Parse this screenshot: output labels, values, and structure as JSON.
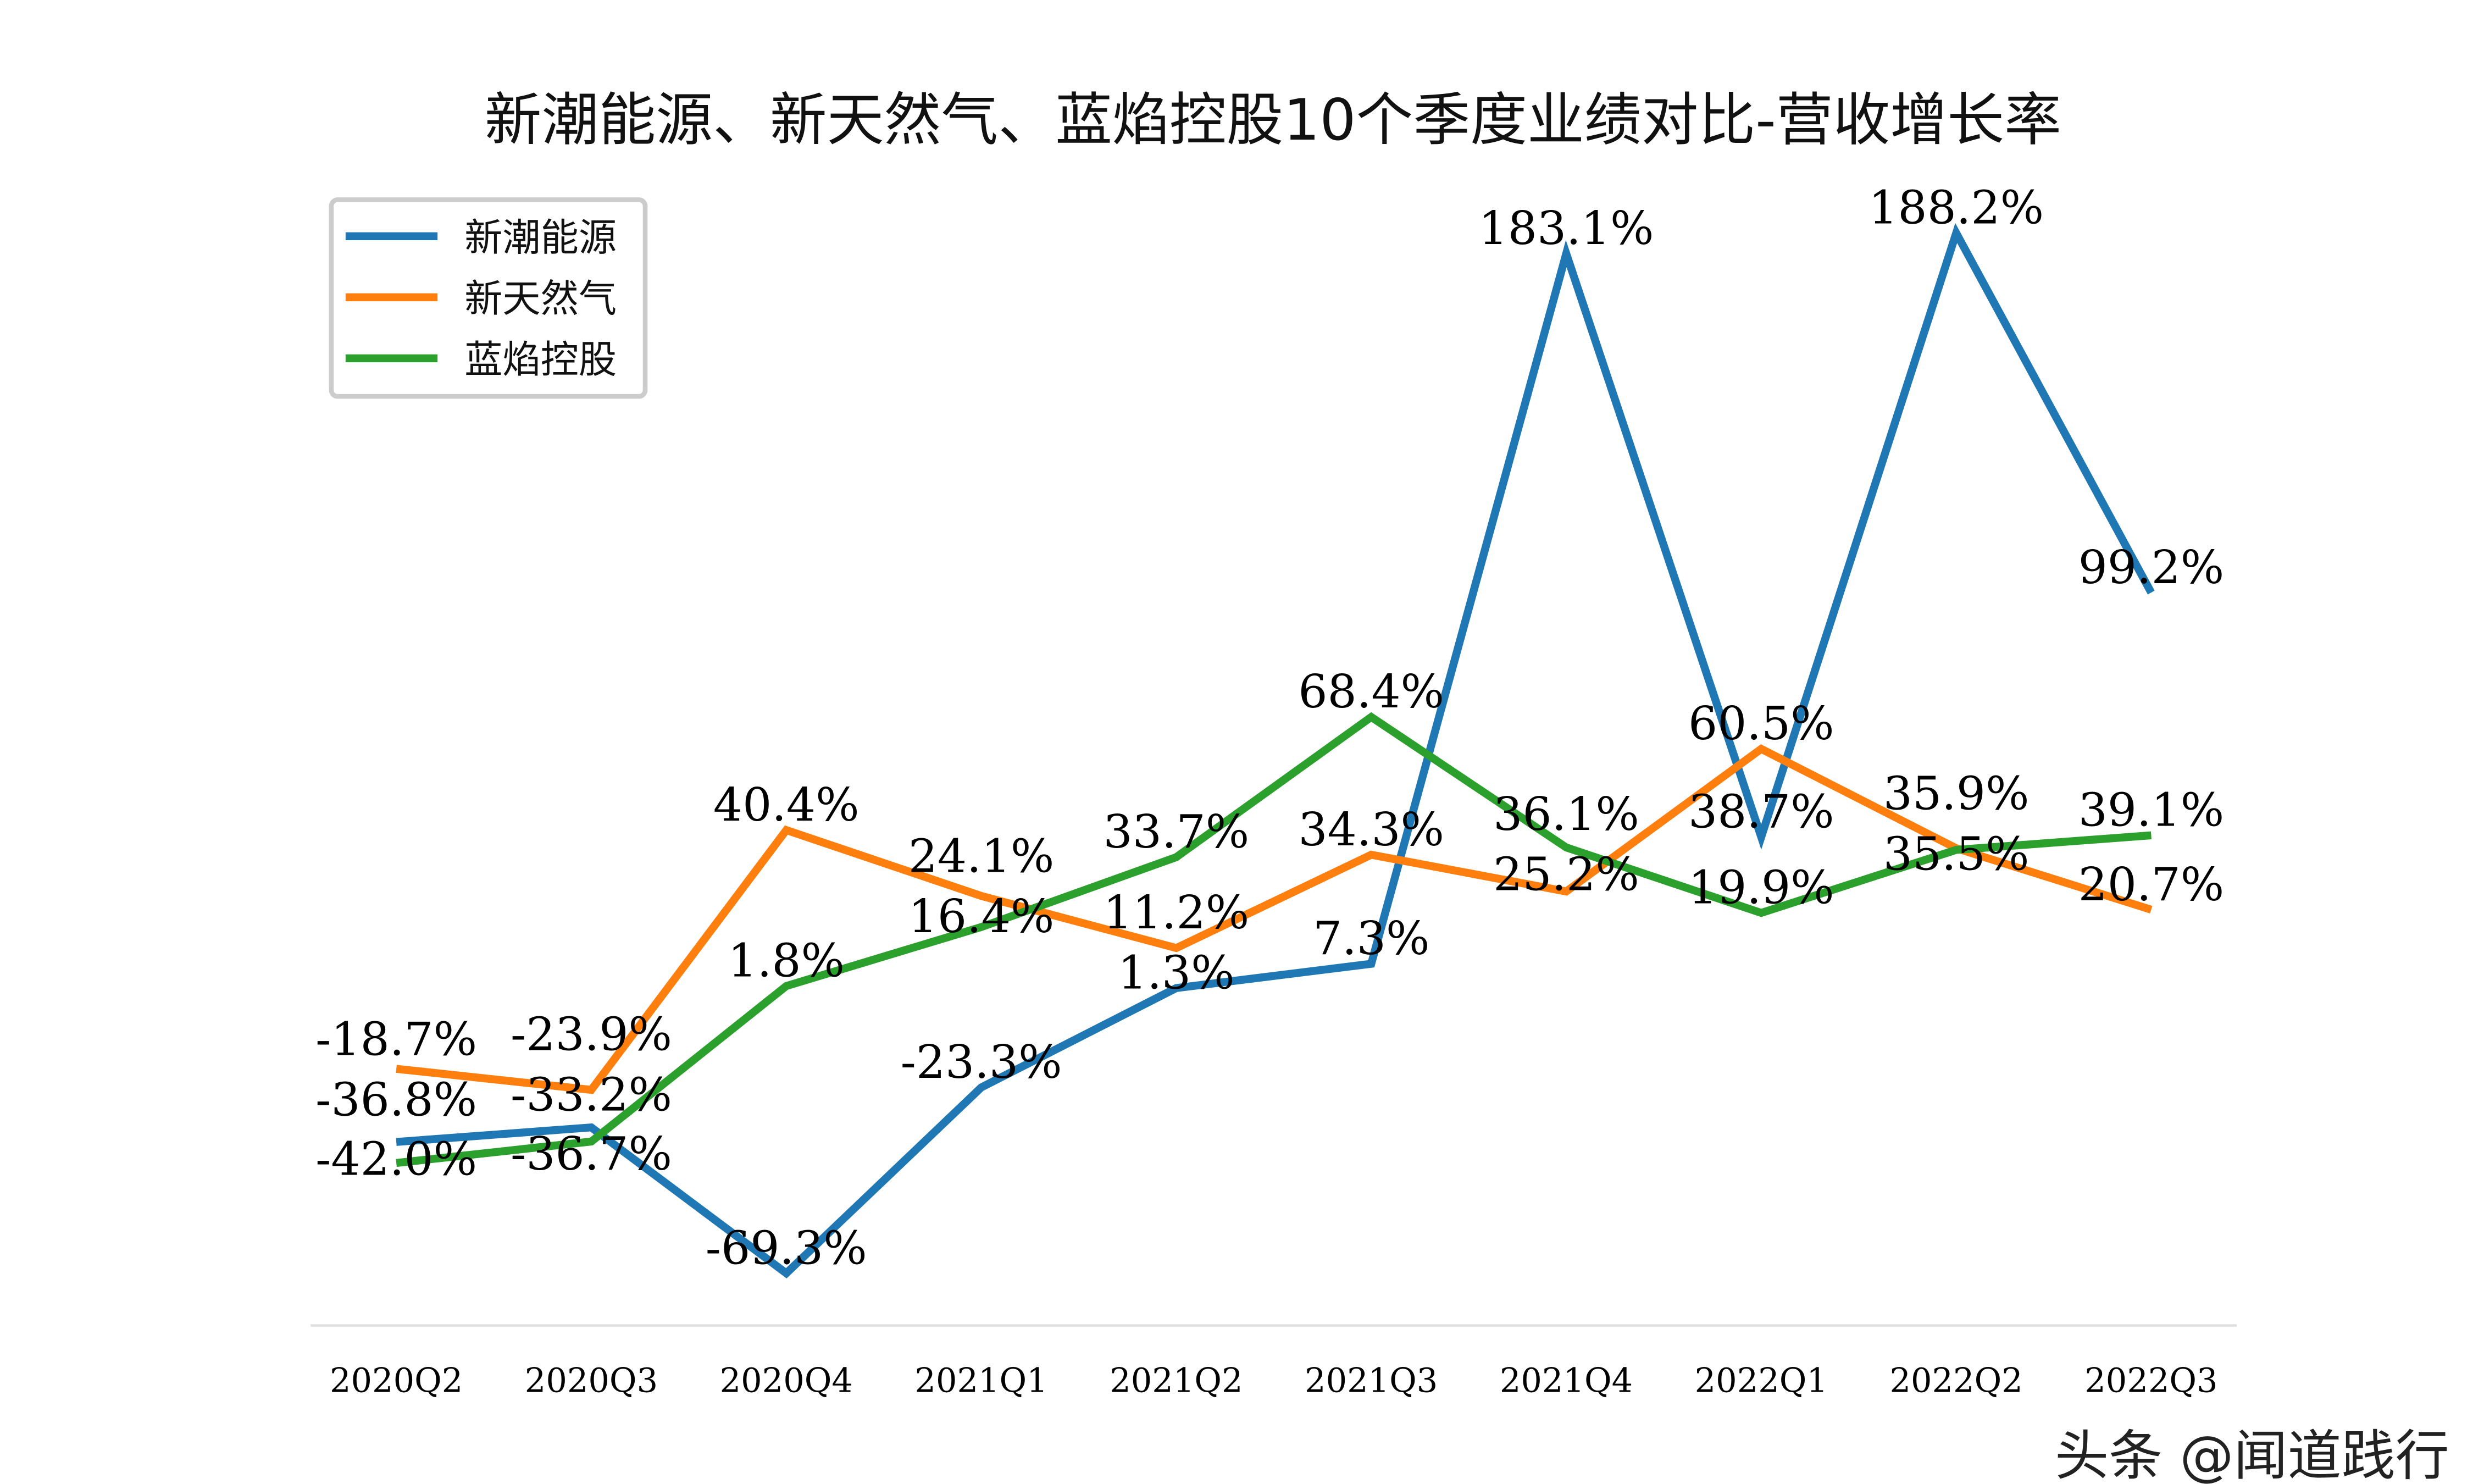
{
  "chart_data": {
    "type": "line",
    "title": "新潮能源、新天然气、蓝焰控股10个季度业绩对比-营收增长率",
    "xlabel": "",
    "ylabel": "",
    "categories": [
      "2020Q2",
      "2020Q3",
      "2020Q4",
      "2021Q1",
      "2021Q2",
      "2021Q3",
      "2021Q4",
      "2022Q1",
      "2022Q2",
      "2022Q3"
    ],
    "series": [
      {
        "name": "新潮能源",
        "color": "#1f77b4",
        "values": [
          -36.8,
          -33.2,
          -69.3,
          -23.3,
          1.3,
          7.3,
          183.1,
          38.7,
          188.2,
          99.2
        ],
        "labels": [
          "-36.8%",
          "-33.2%",
          "-69.3%",
          "-23.3%",
          "1.3%",
          "7.3%",
          "183.1%",
          "38.7%",
          "188.2%",
          "99.2%"
        ]
      },
      {
        "name": "新天然气",
        "color": "#ff7f0e",
        "values": [
          -18.7,
          -23.9,
          40.4,
          24.1,
          11.2,
          34.3,
          25.2,
          60.5,
          35.9,
          20.7
        ],
        "labels": [
          "-18.7%",
          "-23.9%",
          "40.4%",
          "24.1%",
          "11.2%",
          "34.3%",
          "25.2%",
          "60.5%",
          "35.9%",
          "20.7%"
        ]
      },
      {
        "name": "蓝焰控股",
        "color": "#2ca02c",
        "values": [
          -42.0,
          -36.7,
          1.8,
          16.4,
          33.7,
          68.4,
          36.1,
          19.9,
          35.5,
          39.1
        ],
        "labels": [
          "-42.0%",
          "-36.7%",
          "1.8%",
          "16.4%",
          "33.7%",
          "68.4%",
          "36.1%",
          "19.9%",
          "35.5%",
          "39.1%"
        ]
      }
    ],
    "ylim": [
      -82,
      202
    ],
    "y_axis_visible": false,
    "grid": false,
    "legend_position": "top-left"
  },
  "watermark": "头条 @闻道践行"
}
